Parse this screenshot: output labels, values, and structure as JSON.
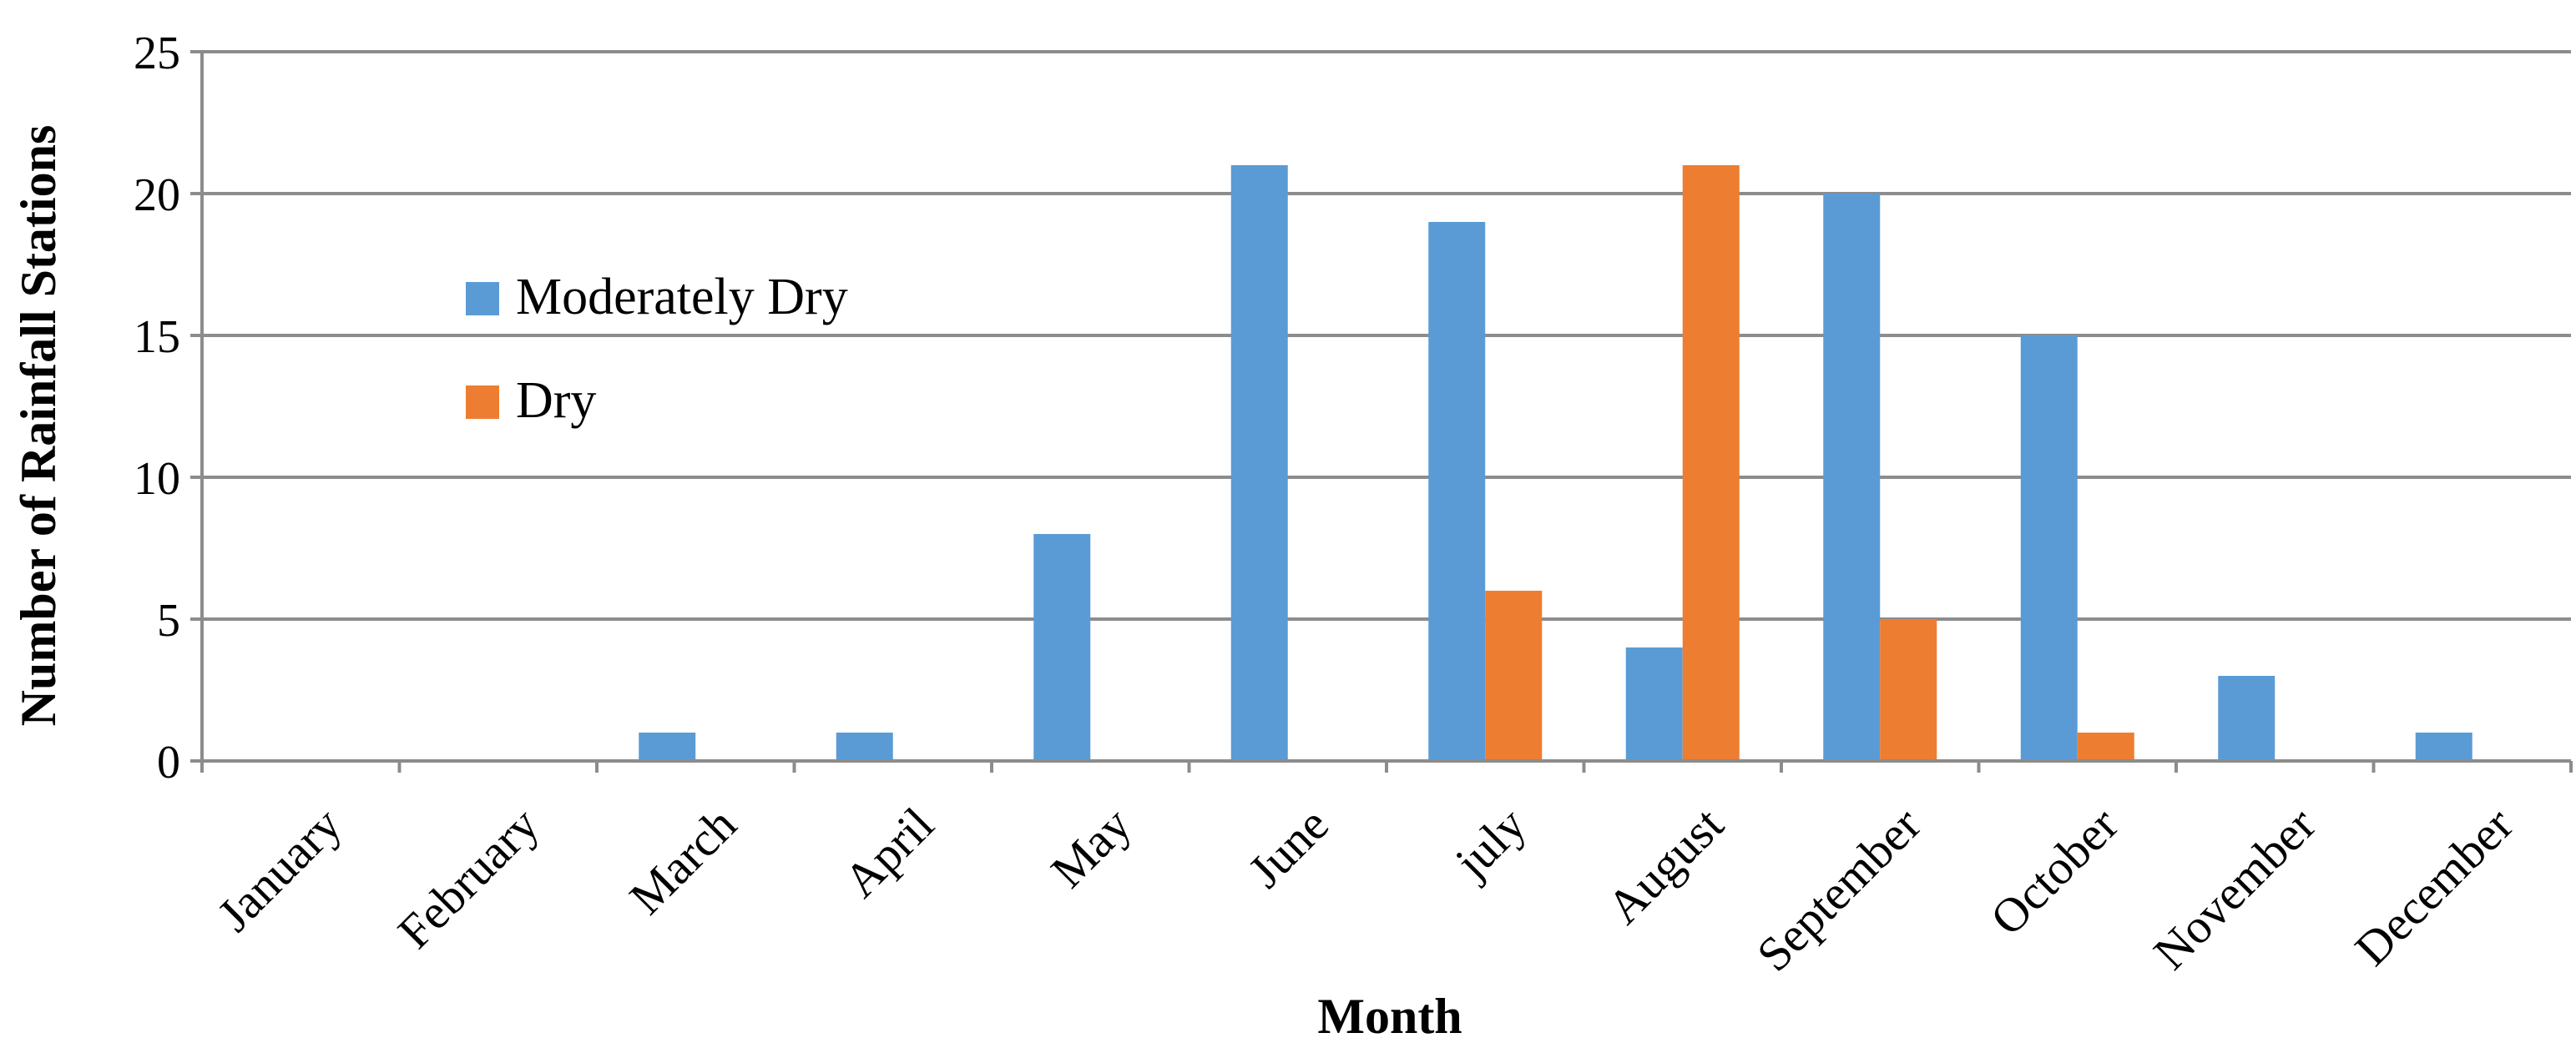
{
  "chart_data": {
    "type": "bar",
    "title": "",
    "xlabel": "Month",
    "ylabel": "Number of Rainfall Stations",
    "ylim": [
      0,
      25
    ],
    "yticks": [
      0,
      5,
      10,
      15,
      20,
      25
    ],
    "grid": true,
    "legend_position": "upper-left inside plot",
    "categories": [
      "January",
      "February",
      "March",
      "April",
      "May",
      "June",
      "july",
      "August",
      "September",
      "October",
      "November",
      "December"
    ],
    "series": [
      {
        "name": "Moderately Dry",
        "color": "#5b9bd5",
        "values": [
          0,
          0,
          1,
          1,
          8,
          21,
          19,
          4,
          20,
          15,
          3,
          1
        ]
      },
      {
        "name": "Dry",
        "color": "#ed7d31",
        "values": [
          0,
          0,
          0,
          0,
          0,
          0,
          6,
          21,
          5,
          1,
          0,
          0
        ]
      }
    ]
  }
}
